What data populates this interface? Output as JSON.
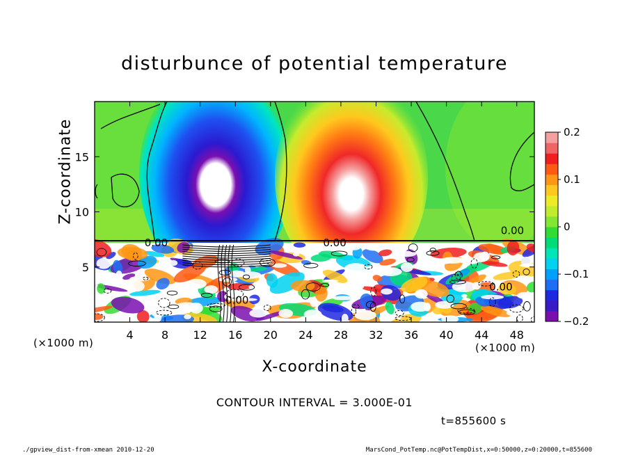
{
  "chart_data": {
    "type": "heatmap",
    "title": "disturbunce of potential temperature",
    "xlabel": "X-coordinate",
    "ylabel": "Z-coordinate",
    "x_unit": "(×1000 m)",
    "z_unit": "(×1000 m)",
    "xlim": [
      0,
      50
    ],
    "ylim": [
      0,
      20
    ],
    "x_ticks": [
      4,
      8,
      12,
      16,
      20,
      24,
      28,
      32,
      36,
      40,
      44,
      48
    ],
    "y_ticks": [
      5,
      10,
      15
    ],
    "colorbar": {
      "range": [
        -0.2,
        0.2
      ],
      "ticks": [
        {
          "value": 0.2,
          "label": "0.2"
        },
        {
          "value": 0.1,
          "label": "0.1"
        },
        {
          "value": 0,
          "label": "0"
        },
        {
          "value": -0.1,
          "label": "−0.1"
        },
        {
          "value": -0.2,
          "label": "−0.2"
        }
      ],
      "colors": [
        "#7a0fb0",
        "#3a1ac8",
        "#1e28e0",
        "#1e6ef5",
        "#00a0ff",
        "#00d2f0",
        "#00e6b4",
        "#00dc78",
        "#32dc32",
        "#82e632",
        "#c3eb2d",
        "#ebeb28",
        "#ffc81e",
        "#ff9614",
        "#ff5a14",
        "#f01e1e",
        "#f06464",
        "#f5a0a0"
      ]
    },
    "features": [
      {
        "name": "cold plume",
        "x": 14.5,
        "z": 11.5,
        "value": -0.2
      },
      {
        "name": "warm plume",
        "x": 29.5,
        "z": 11.5,
        "value": 0.2
      },
      {
        "name": "inversion layer",
        "z": 7.4
      }
    ],
    "contour_labels": [
      {
        "text": "0.00",
        "x": 7,
        "z": 7.2
      },
      {
        "text": "0.00",
        "x": 27.3,
        "z": 7.2
      },
      {
        "text": "0.00",
        "x": 47.5,
        "z": 8.3
      },
      {
        "text": "0.00",
        "x": 46.2,
        "z": 3.2
      },
      {
        "text": "0.00",
        "x": 16.2,
        "z": 2.0
      }
    ],
    "contour_interval": "CONTOUR INTERVAL = 3.000E-01",
    "time": "t=855600 s"
  },
  "footer": {
    "left": "./gpview_dist-from-xmean  2010-12-20",
    "right": "MarsCond_PotTemp.nc@PotTempDist,x=0:50000,z=0:20000,t=855600"
  }
}
